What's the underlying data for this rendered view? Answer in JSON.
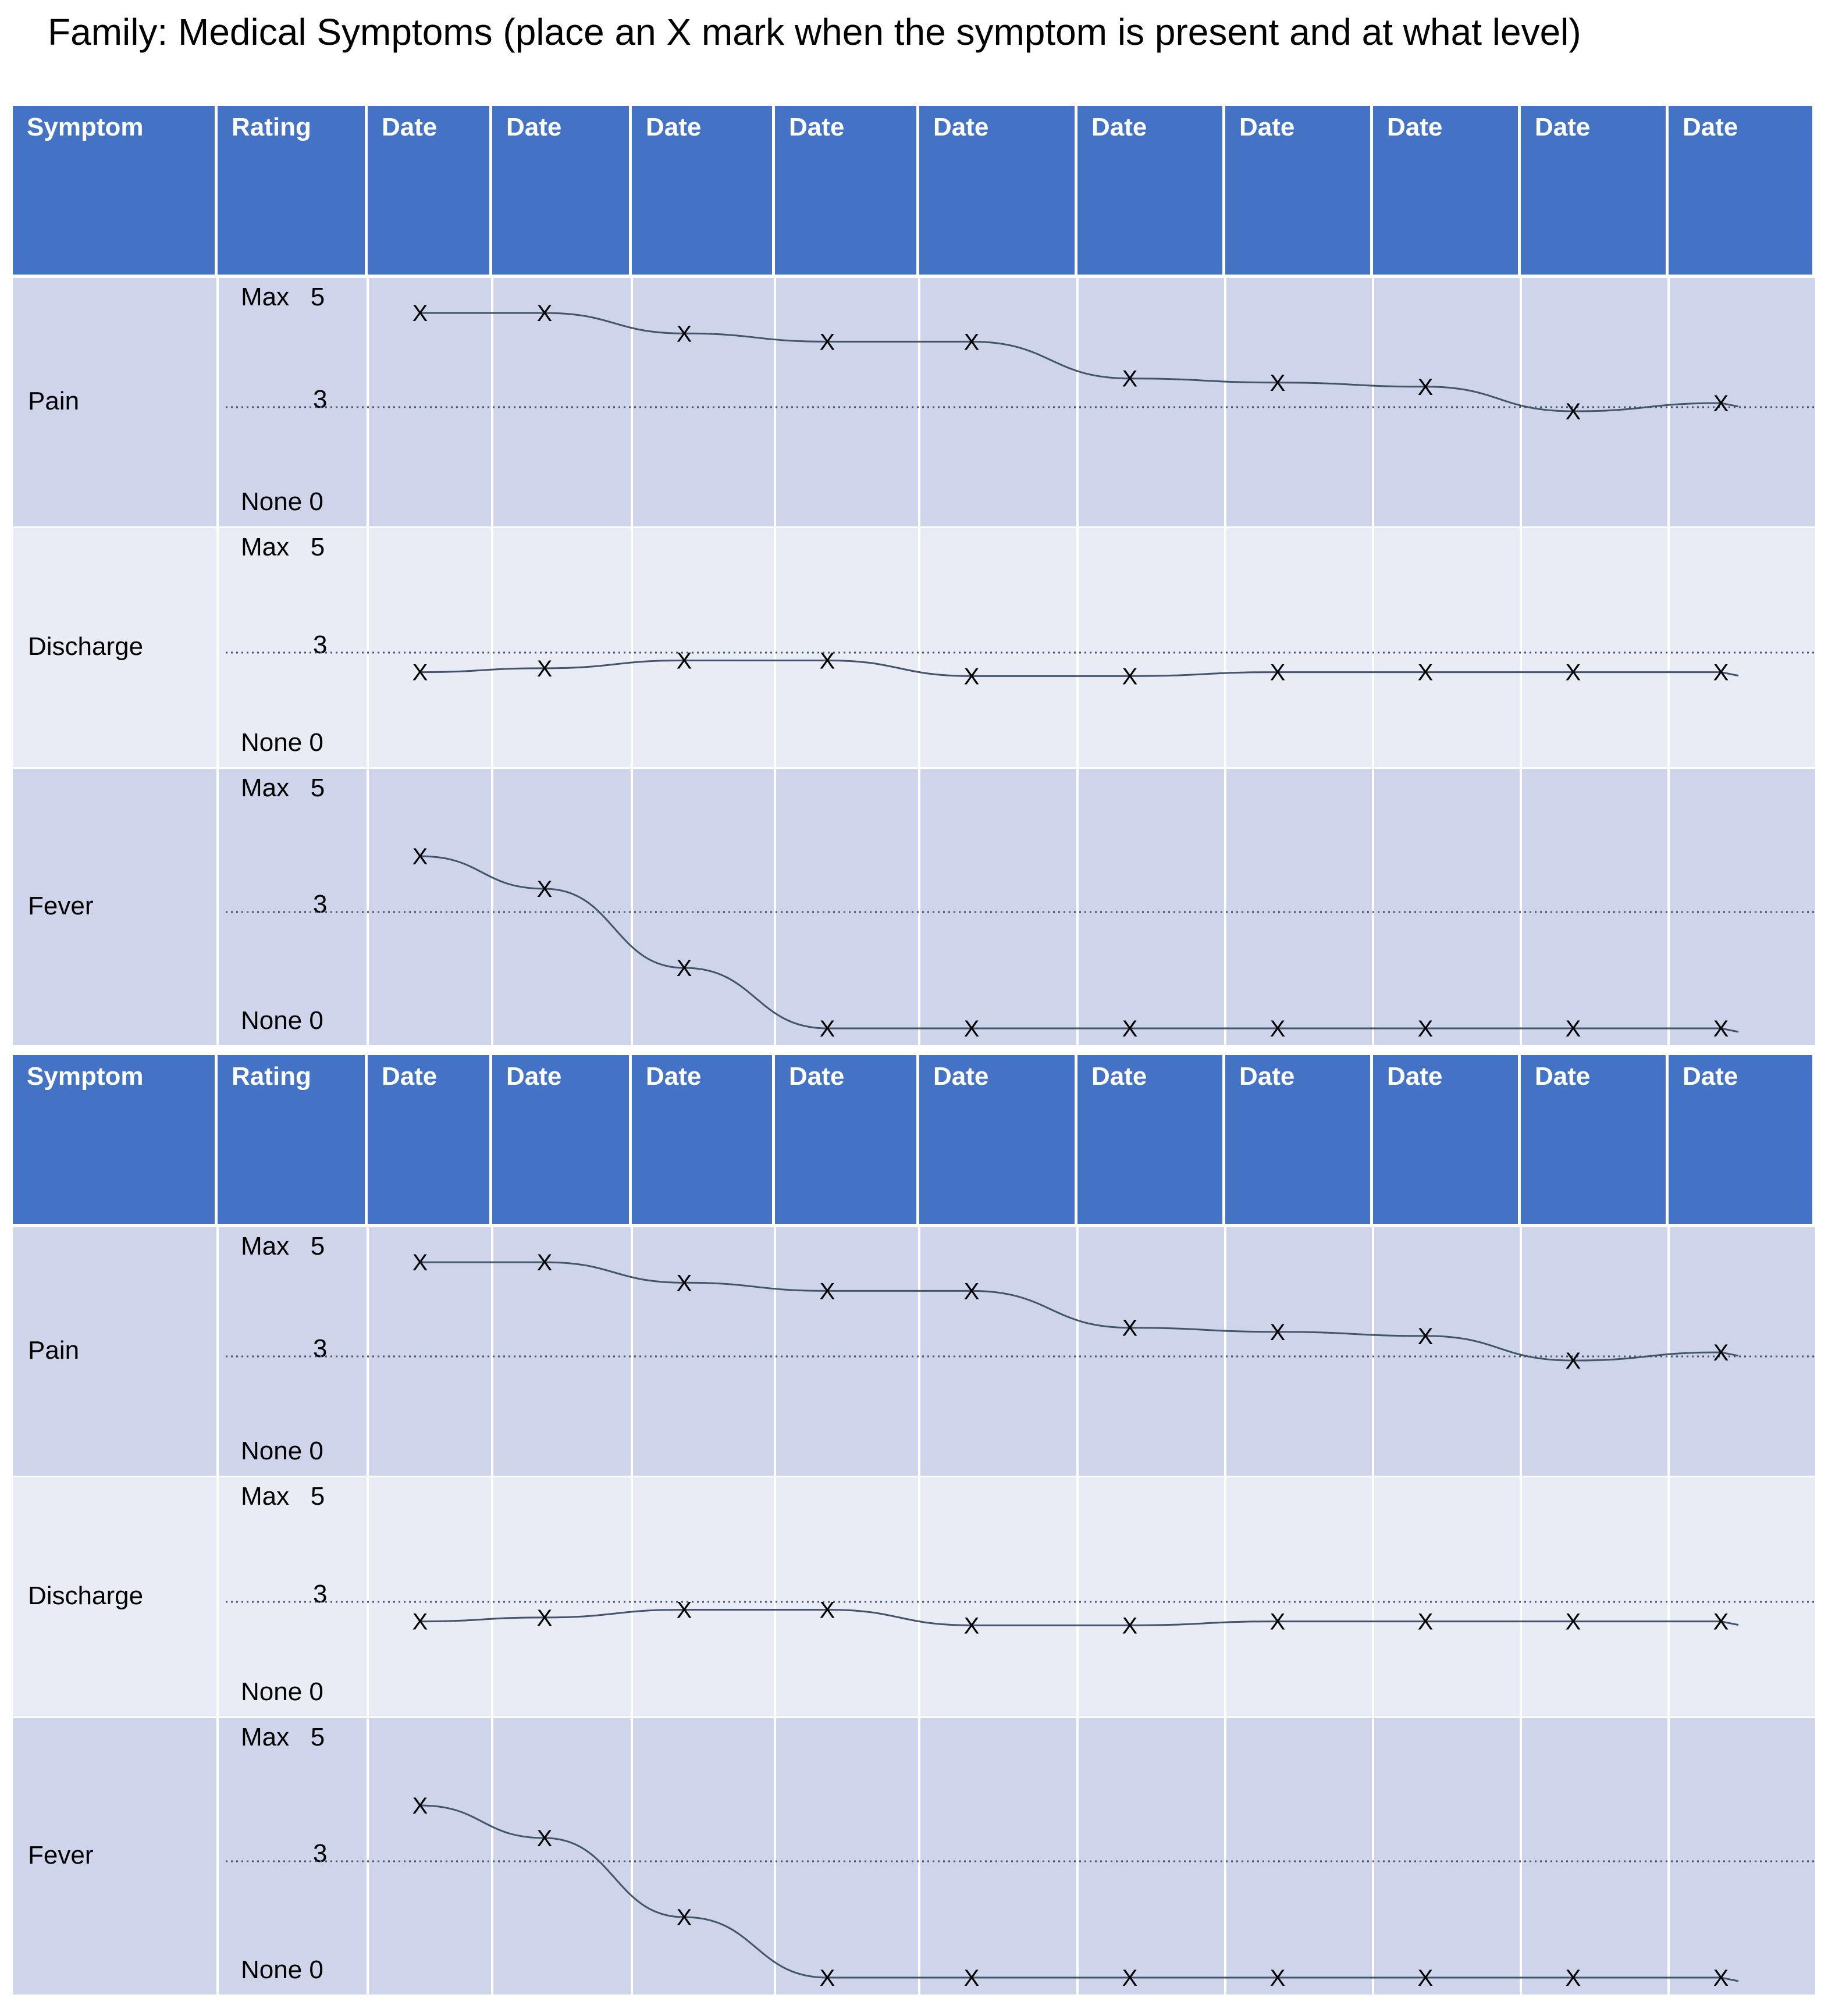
{
  "title": "Family: Medical Symptoms (place an X  mark when the symptom is present and at what level)",
  "header": {
    "symptom": "Symptom",
    "rating": "Rating",
    "dates": [
      "Date",
      "Date",
      "Date",
      "Date",
      "Date",
      "Date",
      "Date",
      "Date",
      "Date",
      "Date"
    ]
  },
  "rating_labels": {
    "max": "Max   5",
    "mid": "3",
    "none": "None 0"
  },
  "marker": "X",
  "colors": {
    "header_bg": "#4472c4",
    "header_text": "#ffffff",
    "row_dark": "#ced5ea",
    "row_light": "#e9ebf5",
    "line": "#44546a"
  },
  "tables": [
    {
      "rows": [
        {
          "symptom": "Pain",
          "levels": [
            4.8,
            4.8,
            4.3,
            4.1,
            4.1,
            3.2,
            3.1,
            3.0,
            2.4,
            2.6
          ]
        },
        {
          "symptom": "Discharge",
          "levels": [
            2.0,
            2.1,
            2.3,
            2.3,
            1.9,
            1.9,
            2.0,
            2.0,
            2.0,
            2.0
          ]
        },
        {
          "symptom": "Fever",
          "levels": [
            3.7,
            3.0,
            1.3,
            0.0,
            0.0,
            0.0,
            0.0,
            0.0,
            0.0,
            0.0
          ]
        }
      ]
    },
    {
      "rows": [
        {
          "symptom": "Pain",
          "levels": [
            4.8,
            4.8,
            4.3,
            4.1,
            4.1,
            3.2,
            3.1,
            3.0,
            2.4,
            2.6
          ]
        },
        {
          "symptom": "Discharge",
          "levels": [
            2.0,
            2.1,
            2.3,
            2.3,
            1.9,
            1.9,
            2.0,
            2.0,
            2.0,
            2.0
          ]
        },
        {
          "symptom": "Fever",
          "levels": [
            3.7,
            3.0,
            1.3,
            0.0,
            0.0,
            0.0,
            0.0,
            0.0,
            0.0,
            0.0
          ]
        }
      ]
    }
  ]
}
